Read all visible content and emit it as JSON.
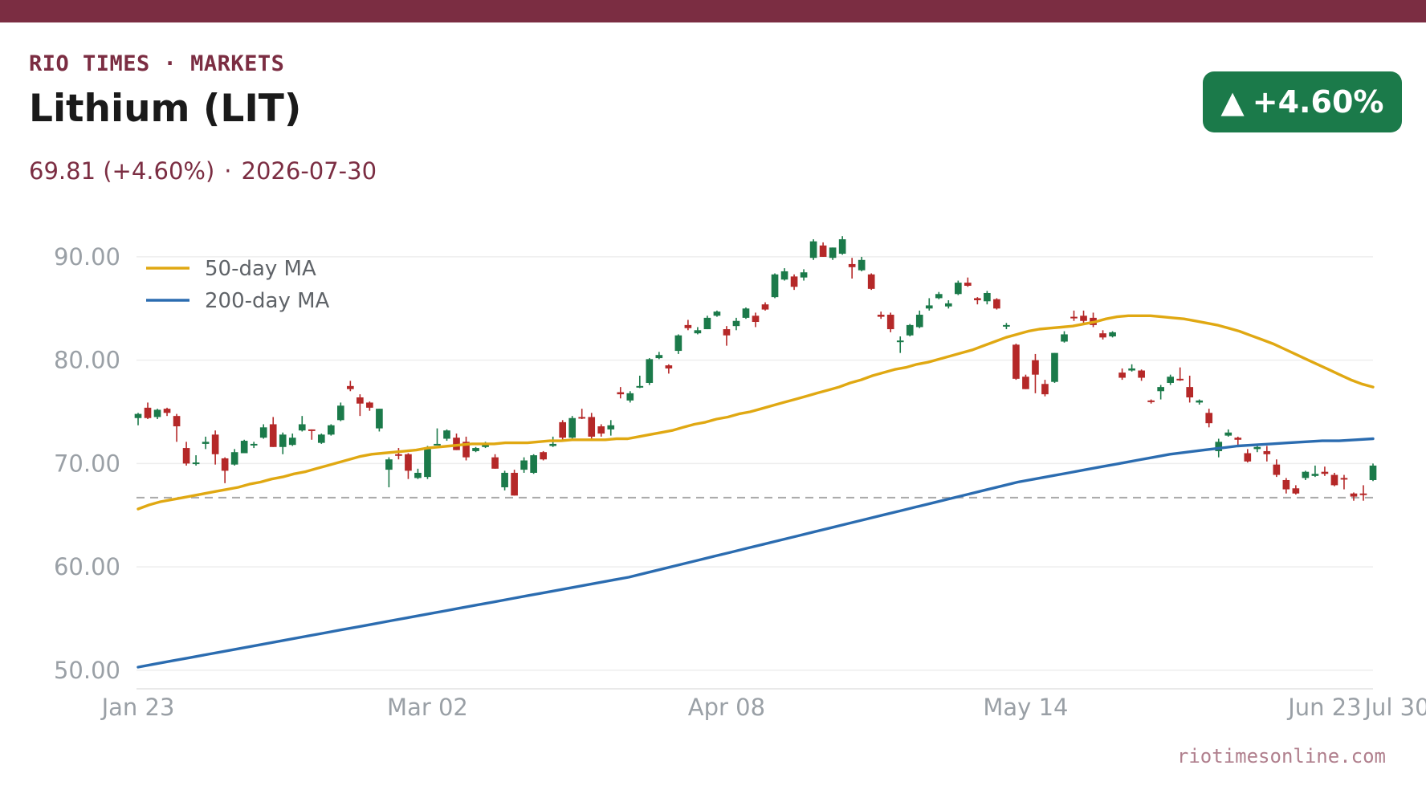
{
  "header": {
    "brand": "RIO TIMES · MARKETS",
    "title": "Lithium (LIT)",
    "price_change": "69.81 (+4.60%)",
    "separator": "·",
    "date": "2026-07-30",
    "badge_arrow": "▲",
    "badge_text": "+4.60%"
  },
  "footer": {
    "source": "riotimesonline.com"
  },
  "colors": {
    "brand": "#7b2d42",
    "up": "#1b7a4a",
    "down": "#b52828",
    "ma50": "#e0a812",
    "ma200": "#2b6cb0",
    "grid": "#eeeeee",
    "tick": "#9aa0a6",
    "reference": "#aaaaaa"
  },
  "chart_data": {
    "type": "candlestick",
    "x_tick_labels": [
      "Jan 23",
      "Mar 02",
      "Apr 08",
      "May 14",
      "Jun 23",
      "Jul 30"
    ],
    "y_tick_labels": [
      "90.00",
      "80.00",
      "70.00",
      "60.00",
      "50.00"
    ],
    "ylim": [
      48.2,
      94.5
    ],
    "y_ticks": [
      90,
      80,
      70,
      60,
      50
    ],
    "grid": true,
    "legend_position": "top-left",
    "legend": [
      {
        "name": "50-day MA",
        "key": "ma50"
      },
      {
        "name": "200-day MA",
        "key": "ma200"
      }
    ],
    "reference_line": 66.7,
    "candles": [
      [
        74.4,
        74.9,
        73.7,
        74.8
      ],
      [
        75.4,
        75.9,
        74.3,
        74.4
      ],
      [
        74.5,
        75.3,
        74.3,
        75.2
      ],
      [
        75.3,
        75.4,
        74.6,
        74.9
      ],
      [
        74.6,
        74.8,
        72.1,
        73.6
      ],
      [
        71.5,
        72.1,
        69.8,
        70.0
      ],
      [
        70.0,
        70.8,
        69.8,
        70.1
      ],
      [
        71.9,
        72.6,
        71.4,
        72.1
      ],
      [
        72.8,
        73.2,
        69.9,
        70.9
      ],
      [
        70.5,
        70.6,
        68.1,
        69.3
      ],
      [
        69.9,
        71.4,
        69.8,
        71.1
      ],
      [
        71.0,
        72.3,
        71.0,
        72.2
      ],
      [
        71.8,
        72.1,
        71.5,
        71.9
      ],
      [
        72.5,
        73.8,
        72.4,
        73.5
      ],
      [
        73.8,
        74.5,
        71.6,
        71.6
      ],
      [
        71.6,
        73.0,
        70.9,
        72.8
      ],
      [
        71.8,
        72.9,
        71.7,
        72.5
      ],
      [
        73.2,
        74.6,
        73.1,
        73.8
      ],
      [
        73.3,
        73.3,
        72.3,
        73.2
      ],
      [
        72.0,
        72.9,
        71.9,
        72.8
      ],
      [
        72.8,
        73.8,
        72.7,
        73.7
      ],
      [
        74.2,
        75.9,
        74.1,
        75.6
      ],
      [
        77.5,
        78.0,
        77.0,
        77.2
      ],
      [
        76.4,
        76.7,
        74.6,
        75.8
      ],
      [
        75.9,
        76.0,
        75.1,
        75.4
      ],
      [
        73.4,
        75.3,
        73.1,
        75.3
      ],
      [
        69.4,
        70.6,
        67.7,
        70.4
      ],
      [
        70.9,
        71.5,
        70.4,
        70.8
      ],
      [
        70.9,
        71.0,
        68.5,
        69.3
      ],
      [
        68.6,
        69.5,
        68.5,
        69.1
      ],
      [
        68.7,
        71.7,
        68.5,
        71.4
      ],
      [
        71.9,
        73.4,
        71.8,
        71.9
      ],
      [
        72.4,
        73.3,
        72.2,
        73.2
      ],
      [
        72.5,
        72.9,
        71.3,
        71.3
      ],
      [
        72.1,
        72.6,
        70.3,
        70.6
      ],
      [
        71.2,
        71.6,
        71.1,
        71.5
      ],
      [
        71.6,
        72.1,
        71.5,
        71.8
      ],
      [
        70.6,
        70.9,
        69.5,
        69.5
      ],
      [
        67.7,
        69.3,
        67.4,
        69.1
      ],
      [
        69.1,
        69.4,
        66.9,
        66.9
      ],
      [
        69.4,
        70.6,
        69.1,
        70.3
      ],
      [
        69.1,
        70.9,
        69.0,
        70.8
      ],
      [
        71.1,
        71.2,
        70.3,
        70.4
      ],
      [
        71.7,
        72.6,
        71.6,
        71.9
      ],
      [
        74.0,
        74.2,
        72.2,
        72.5
      ],
      [
        72.5,
        74.6,
        72.3,
        74.4
      ],
      [
        74.5,
        75.3,
        74.3,
        74.4
      ],
      [
        74.5,
        74.9,
        72.2,
        72.6
      ],
      [
        73.6,
        73.8,
        72.6,
        72.9
      ],
      [
        73.3,
        74.2,
        72.7,
        73.7
      ],
      [
        76.9,
        77.4,
        76.3,
        76.7
      ],
      [
        76.1,
        77.0,
        75.9,
        76.8
      ],
      [
        77.5,
        78.5,
        77.3,
        77.5
      ],
      [
        77.8,
        80.2,
        77.6,
        80.1
      ],
      [
        80.2,
        80.8,
        80.1,
        80.5
      ],
      [
        79.5,
        79.6,
        78.7,
        79.2
      ],
      [
        80.9,
        82.5,
        80.6,
        82.4
      ],
      [
        83.4,
        83.9,
        82.9,
        83.1
      ],
      [
        82.6,
        83.2,
        82.5,
        82.9
      ],
      [
        83.0,
        84.3,
        83.0,
        84.1
      ],
      [
        84.3,
        84.8,
        84.2,
        84.7
      ],
      [
        83.0,
        83.3,
        81.4,
        82.4
      ],
      [
        83.3,
        84.1,
        82.9,
        83.8
      ],
      [
        84.1,
        85.1,
        84.0,
        85.0
      ],
      [
        84.3,
        84.6,
        83.2,
        83.7
      ],
      [
        85.4,
        85.6,
        84.8,
        84.9
      ],
      [
        86.1,
        88.4,
        86.0,
        88.3
      ],
      [
        87.8,
        88.9,
        87.7,
        88.6
      ],
      [
        88.1,
        88.3,
        86.8,
        87.1
      ],
      [
        88.0,
        88.8,
        87.7,
        88.5
      ],
      [
        89.9,
        91.7,
        89.7,
        91.5
      ],
      [
        91.1,
        91.4,
        90.0,
        90.0
      ],
      [
        89.9,
        90.9,
        89.7,
        90.9
      ],
      [
        90.3,
        92.0,
        90.2,
        91.7
      ],
      [
        89.3,
        89.9,
        87.9,
        89.0
      ],
      [
        88.7,
        90.0,
        88.6,
        89.7
      ],
      [
        88.3,
        88.4,
        86.8,
        86.9
      ],
      [
        84.4,
        84.7,
        84.0,
        84.2
      ],
      [
        84.4,
        84.6,
        82.7,
        83.0
      ],
      [
        81.8,
        82.3,
        80.7,
        81.9
      ],
      [
        82.4,
        83.5,
        82.3,
        83.4
      ],
      [
        83.2,
        84.8,
        83.1,
        84.4
      ],
      [
        85.0,
        86.0,
        84.8,
        85.3
      ],
      [
        86.0,
        86.6,
        85.9,
        86.4
      ],
      [
        85.2,
        85.8,
        85.0,
        85.5
      ],
      [
        86.4,
        87.7,
        86.3,
        87.5
      ],
      [
        87.5,
        88.0,
        87.1,
        87.2
      ],
      [
        86.0,
        86.1,
        85.4,
        85.8
      ],
      [
        85.7,
        86.7,
        85.4,
        86.5
      ],
      [
        85.9,
        86.0,
        84.9,
        85.0
      ],
      [
        83.3,
        83.6,
        83.0,
        83.4
      ],
      [
        81.5,
        81.6,
        78.1,
        78.2
      ],
      [
        78.4,
        78.6,
        77.2,
        77.2
      ],
      [
        80.0,
        80.6,
        76.8,
        78.6
      ],
      [
        77.7,
        78.1,
        76.5,
        76.7
      ],
      [
        77.9,
        80.7,
        77.8,
        80.7
      ],
      [
        81.8,
        82.8,
        81.7,
        82.5
      ],
      [
        84.2,
        84.8,
        83.8,
        84.1
      ],
      [
        84.3,
        84.8,
        83.4,
        83.8
      ],
      [
        84.1,
        84.6,
        83.2,
        83.4
      ],
      [
        82.6,
        82.9,
        82.0,
        82.2
      ],
      [
        82.3,
        82.8,
        82.2,
        82.7
      ],
      [
        78.8,
        79.2,
        78.1,
        78.3
      ],
      [
        79.0,
        79.6,
        78.9,
        79.2
      ],
      [
        79.0,
        79.1,
        78.0,
        78.3
      ],
      [
        76.1,
        76.2,
        75.8,
        76.0
      ],
      [
        77.0,
        77.6,
        76.2,
        77.4
      ],
      [
        77.8,
        78.6,
        77.6,
        78.4
      ],
      [
        78.2,
        79.3,
        78.0,
        78.1
      ],
      [
        77.4,
        78.5,
        75.9,
        76.4
      ],
      [
        75.9,
        76.2,
        75.7,
        76.1
      ],
      [
        74.9,
        75.3,
        73.5,
        73.9
      ],
      [
        71.2,
        72.4,
        70.6,
        72.1
      ],
      [
        72.7,
        73.3,
        72.6,
        73.0
      ],
      [
        72.5,
        72.6,
        71.7,
        72.3
      ],
      [
        71.0,
        71.4,
        70.1,
        70.2
      ],
      [
        71.4,
        71.8,
        71.1,
        71.6
      ],
      [
        71.2,
        71.7,
        70.2,
        70.9
      ],
      [
        69.9,
        70.4,
        68.7,
        68.9
      ],
      [
        68.4,
        68.6,
        67.1,
        67.5
      ],
      [
        67.6,
        67.9,
        67.0,
        67.1
      ],
      [
        68.6,
        69.3,
        68.4,
        69.2
      ],
      [
        68.8,
        69.8,
        68.7,
        69.0
      ],
      [
        69.2,
        69.7,
        68.8,
        69.0
      ],
      [
        68.9,
        69.1,
        67.8,
        67.9
      ],
      [
        68.6,
        68.9,
        67.5,
        68.5
      ],
      [
        67.1,
        67.2,
        66.4,
        66.8
      ],
      [
        67.1,
        67.9,
        66.4,
        67.0
      ],
      [
        68.4,
        70.0,
        68.3,
        69.8
      ]
    ],
    "ma50": [
      65.6,
      66.0,
      66.3,
      66.5,
      66.7,
      66.9,
      67.1,
      67.3,
      67.5,
      67.7,
      68.0,
      68.2,
      68.5,
      68.7,
      69.0,
      69.2,
      69.5,
      69.8,
      70.1,
      70.4,
      70.7,
      70.9,
      71.0,
      71.1,
      71.2,
      71.3,
      71.5,
      71.6,
      71.7,
      71.8,
      71.9,
      71.9,
      71.9,
      72.0,
      72.0,
      72.0,
      72.1,
      72.2,
      72.2,
      72.3,
      72.3,
      72.3,
      72.3,
      72.4,
      72.4,
      72.6,
      72.8,
      73.0,
      73.2,
      73.5,
      73.8,
      74.0,
      74.3,
      74.5,
      74.8,
      75.0,
      75.3,
      75.6,
      75.9,
      76.2,
      76.5,
      76.8,
      77.1,
      77.4,
      77.8,
      78.1,
      78.5,
      78.8,
      79.1,
      79.3,
      79.6,
      79.8,
      80.1,
      80.4,
      80.7,
      81.0,
      81.4,
      81.8,
      82.2,
      82.5,
      82.8,
      83.0,
      83.1,
      83.2,
      83.3,
      83.5,
      83.7,
      84.0,
      84.2,
      84.3,
      84.3,
      84.3,
      84.2,
      84.1,
      84.0,
      83.8,
      83.6,
      83.4,
      83.1,
      82.8,
      82.4,
      82.0,
      81.6,
      81.1,
      80.6,
      80.1,
      79.6,
      79.1,
      78.6,
      78.1,
      77.7,
      77.4
    ],
    "ma200": [
      50.3,
      50.6,
      50.9,
      51.2,
      51.5,
      51.8,
      52.1,
      52.4,
      52.7,
      53.0,
      53.3,
      53.6,
      53.9,
      54.2,
      54.5,
      54.8,
      55.1,
      55.4,
      55.7,
      56.0,
      56.3,
      56.6,
      56.9,
      57.2,
      57.5,
      57.8,
      58.1,
      58.4,
      58.7,
      59.0,
      59.4,
      59.8,
      60.2,
      60.6,
      61.0,
      61.4,
      61.8,
      62.2,
      62.6,
      63.0,
      63.4,
      63.8,
      64.2,
      64.6,
      65.0,
      65.4,
      65.8,
      66.2,
      66.6,
      67.0,
      67.4,
      67.8,
      68.2,
      68.5,
      68.8,
      69.1,
      69.4,
      69.7,
      70.0,
      70.3,
      70.6,
      70.9,
      71.1,
      71.3,
      71.5,
      71.7,
      71.8,
      71.9,
      72.0,
      72.1,
      72.2,
      72.2,
      72.3,
      72.4
    ]
  }
}
